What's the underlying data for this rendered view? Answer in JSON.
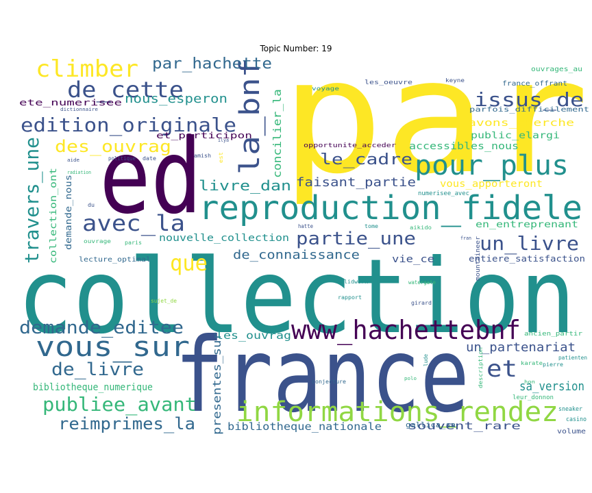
{
  "title": "Topic Number: 19",
  "colors": {
    "purple": "#440154",
    "indigo": "#3b528b",
    "blue": "#31688e",
    "teal": "#21908d",
    "green": "#35b779",
    "lime": "#90d743",
    "yellow": "#fde725"
  },
  "words": [
    {
      "text": "par",
      "color": "yellow"
    },
    {
      "text": "ed",
      "color": "purple"
    },
    {
      "text": "collection",
      "color": "teal"
    },
    {
      "text": "france",
      "color": "indigo"
    },
    {
      "text": "reproduction_fidele",
      "color": "teal"
    },
    {
      "text": "www_hachettebnf",
      "color": "purple"
    },
    {
      "text": "informations_rendez",
      "color": "lime"
    },
    {
      "text": "pour_plus",
      "color": "teal"
    },
    {
      "text": "la_bnf",
      "color": "indigo"
    },
    {
      "text": "edition_originale",
      "color": "indigo"
    },
    {
      "text": "climber",
      "color": "yellow"
    },
    {
      "text": "de_cette",
      "color": "indigo"
    },
    {
      "text": "avec_la",
      "color": "indigo"
    },
    {
      "text": "vous_sur",
      "color": "blue"
    },
    {
      "text": "travers_une",
      "color": "teal"
    },
    {
      "text": "issus_de",
      "color": "indigo"
    },
    {
      "text": "un_livre",
      "color": "indigo"
    },
    {
      "text": "partie_une",
      "color": "indigo"
    },
    {
      "text": "et",
      "color": "indigo"
    },
    {
      "text": "que",
      "color": "yellow"
    },
    {
      "text": "demande_editee",
      "color": "blue"
    },
    {
      "text": "publiee_avant",
      "color": "green"
    },
    {
      "text": "reimprimes_la",
      "color": "blue"
    },
    {
      "text": "de_livre",
      "color": "blue"
    },
    {
      "text": "le_cadre",
      "color": "indigo"
    },
    {
      "text": "des_ouvrag",
      "color": "yellow"
    },
    {
      "text": "par_hachette",
      "color": "blue"
    },
    {
      "text": "livre_dan",
      "color": "teal"
    },
    {
      "text": "faisant_partie",
      "color": "indigo"
    },
    {
      "text": "nous_esperon",
      "color": "teal"
    },
    {
      "text": "de_connaissance",
      "color": "blue"
    },
    {
      "text": "un_partenariat",
      "color": "indigo"
    },
    {
      "text": "sa_version",
      "color": "teal"
    },
    {
      "text": "concilier_la",
      "color": "green"
    },
    {
      "text": "presentes_sur",
      "color": "blue"
    },
    {
      "text": "bibliotheque_nationale",
      "color": "blue"
    },
    {
      "text": "souvent_rare",
      "color": "indigo"
    },
    {
      "text": "bibliotheque_numerique",
      "color": "green"
    },
    {
      "text": "les_ouvrag",
      "color": "teal"
    },
    {
      "text": "nouvelle_collection",
      "color": "teal"
    },
    {
      "text": "vous_apporteront",
      "color": "yellow"
    },
    {
      "text": "accessibles_nous",
      "color": "green"
    },
    {
      "text": "en_entreprenant",
      "color": "green"
    },
    {
      "text": "avons_cherche",
      "color": "yellow"
    },
    {
      "text": "public_elargi",
      "color": "green"
    },
    {
      "text": "collection_ont",
      "color": "green"
    },
    {
      "text": "demande_nous",
      "color": "blue"
    },
    {
      "text": "vie_ce",
      "color": "indigo"
    },
    {
      "text": "entiere_satisfaction",
      "color": "indigo"
    },
    {
      "text": "ete_numerisee",
      "color": "purple"
    },
    {
      "text": "et_participon",
      "color": "purple"
    },
    {
      "text": "opportunite_acceder",
      "color": "purple"
    },
    {
      "text": "parfois_difficilement",
      "color": "blue"
    },
    {
      "text": "france_offrant",
      "color": "blue"
    },
    {
      "text": "ouvrages_au",
      "color": "green"
    },
    {
      "text": "les_oeuvre",
      "color": "indigo"
    },
    {
      "text": "voyage",
      "color": "teal"
    },
    {
      "text": "keyne",
      "color": "indigo"
    },
    {
      "text": "gallica_sa",
      "color": "blue"
    },
    {
      "text": "volume",
      "color": "indigo"
    },
    {
      "text": "casino",
      "color": "teal"
    },
    {
      "text": "sneaker",
      "color": "teal"
    },
    {
      "text": "leur_donnon",
      "color": "green"
    },
    {
      "text": "patienten",
      "color": "teal"
    },
    {
      "text": "karate",
      "color": "green"
    },
    {
      "text": "pierre",
      "color": "teal"
    },
    {
      "text": "ancien_partir",
      "color": "green"
    },
    {
      "text": "lecture_optimal",
      "color": "blue"
    },
    {
      "text": "ouvrage",
      "color": "green"
    },
    {
      "text": "paris",
      "color": "green"
    },
    {
      "text": "date",
      "color": "indigo"
    },
    {
      "text": "politique",
      "color": "indigo"
    },
    {
      "text": "aide",
      "color": "indigo"
    },
    {
      "text": "radiation",
      "color": "green"
    },
    {
      "text": "du",
      "color": "indigo"
    },
    {
      "text": "amish",
      "color": "indigo"
    },
    {
      "text": "dictionnaire",
      "color": "indigo"
    },
    {
      "text": "numerisee_avec",
      "color": "teal"
    },
    {
      "text": "solidwork",
      "color": "teal"
    },
    {
      "text": "rapport",
      "color": "teal"
    },
    {
      "text": "girard",
      "color": "indigo"
    },
    {
      "text": "watergate",
      "color": "green"
    },
    {
      "text": "aikido",
      "color": "green"
    },
    {
      "text": "tome",
      "color": "teal"
    },
    {
      "text": "hatte",
      "color": "indigo"
    },
    {
      "text": "sujet_de",
      "color": "lime"
    },
    {
      "text": "mountaineer",
      "color": "indigo"
    },
    {
      "text": "conjecture",
      "color": "blue"
    },
    {
      "text": "description",
      "color": "green"
    },
    {
      "text": "polo",
      "color": "green"
    },
    {
      "text": "lude",
      "color": "teal"
    },
    {
      "text": "fran",
      "color": "indigo"
    },
    {
      "text": "ilya",
      "color": "indigo"
    },
    {
      "text": "est",
      "color": "yellow"
    },
    {
      "text": "hon",
      "color": "green"
    }
  ]
}
